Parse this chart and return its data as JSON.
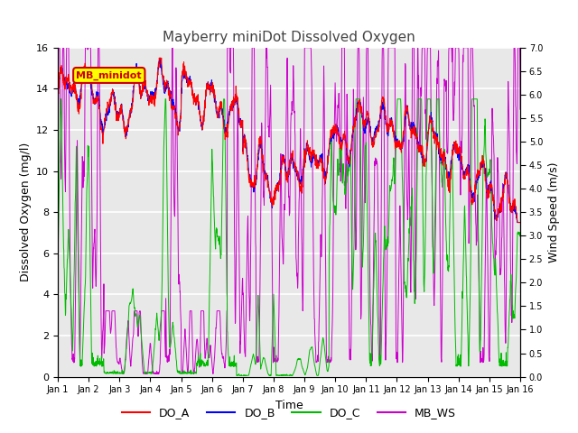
{
  "title": "Mayberry miniDot Dissolved Oxygen",
  "xlabel": "Time",
  "ylabel_left": "Dissolved Oxygen (mg/l)",
  "ylabel_right": "Wind Speed (m/s)",
  "xlim": [
    0,
    15
  ],
  "ylim_left": [
    0,
    16
  ],
  "ylim_right": [
    0,
    7.0
  ],
  "yticks_left": [
    0,
    2,
    4,
    6,
    8,
    10,
    12,
    14,
    16
  ],
  "yticks_right": [
    0.0,
    0.5,
    1.0,
    1.5,
    2.0,
    2.5,
    3.0,
    3.5,
    4.0,
    4.5,
    5.0,
    5.5,
    6.0,
    6.5,
    7.0
  ],
  "xtick_labels": [
    "Jan 1",
    "Jan 2",
    "Jan 3",
    "Jan 4",
    "Jan 5",
    "Jan 6",
    "Jan 7",
    "Jan 8",
    "Jan 9",
    "Jan 10",
    "Jan 11",
    "Jan 12",
    "Jan 13",
    "Jan 14",
    "Jan 15",
    "Jan 16"
  ],
  "colors": {
    "DO_A": "#ff0000",
    "DO_B": "#0000ff",
    "DO_C": "#00bb00",
    "MB_WS": "#cc00cc"
  },
  "legend_label": "MB_minidot",
  "legend_box_facecolor": "#ffff00",
  "legend_box_edgecolor": "#cc0000",
  "legend_text_color": "#cc0000",
  "background_color": "#e8e8e8",
  "grid_color": "#ffffff",
  "fig_bg": "#ffffff",
  "title_color": "#444444",
  "title_fontsize": 11,
  "axis_fontsize": 9,
  "tick_fontsize": 8
}
